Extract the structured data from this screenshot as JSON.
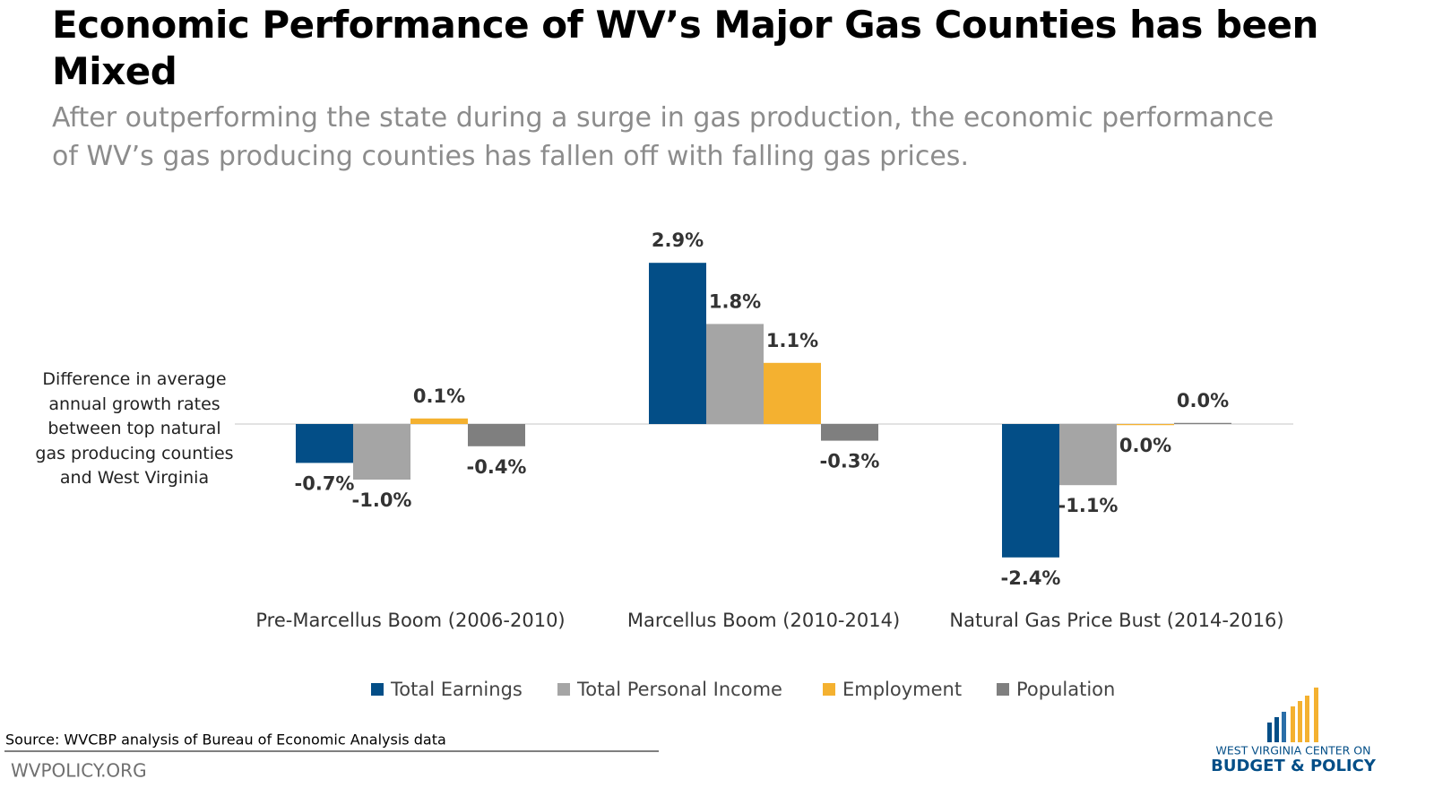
{
  "chart_data": {
    "type": "bar",
    "title": "Economic Performance of WV’s Major Gas Counties has been Mixed",
    "subtitle": "After outperforming the state during a surge in gas production, the economic performance of WV’s gas producing counties has fallen off with falling gas prices.",
    "y_label": "Difference in average annual growth rates between top natural gas producing counties and West Virginia",
    "categories": [
      "Pre-Marcellus Boom (2006-2010)",
      "Marcellus Boom (2010-2014)",
      "Natural Gas Price Bust (2014-2016)"
    ],
    "series": [
      {
        "name": "Total Earnings",
        "color": "#034e87",
        "values": [
          -0.7,
          2.9,
          -2.4
        ],
        "value_labels": [
          "-0.7%",
          "2.9%",
          "-2.4%"
        ]
      },
      {
        "name": "Total Personal Income",
        "color": "#a5a5a5",
        "values": [
          -1.0,
          1.8,
          -1.1
        ],
        "value_labels": [
          "-1.0%",
          "1.8%",
          "-1.1%"
        ]
      },
      {
        "name": "Employment",
        "color": "#f4b130",
        "values": [
          0.1,
          1.1,
          -0.02
        ],
        "value_labels": [
          "0.1%",
          "1.1%",
          "0.0%"
        ]
      },
      {
        "name": "Population",
        "color": "#7f7f7f",
        "values": [
          -0.4,
          -0.3,
          0.02
        ],
        "value_labels": [
          "-0.4%",
          "-0.3%",
          "0.0%"
        ]
      }
    ],
    "legend": "bottom",
    "source": "Source: WVCBP analysis of Bureau of Economic Analysis data"
  },
  "footer": {
    "site": "WVPOLICY.ORG",
    "logo_top": "WEST VIRGINIA CENTER ON",
    "logo_bottom": "BUDGET & POLICY"
  }
}
